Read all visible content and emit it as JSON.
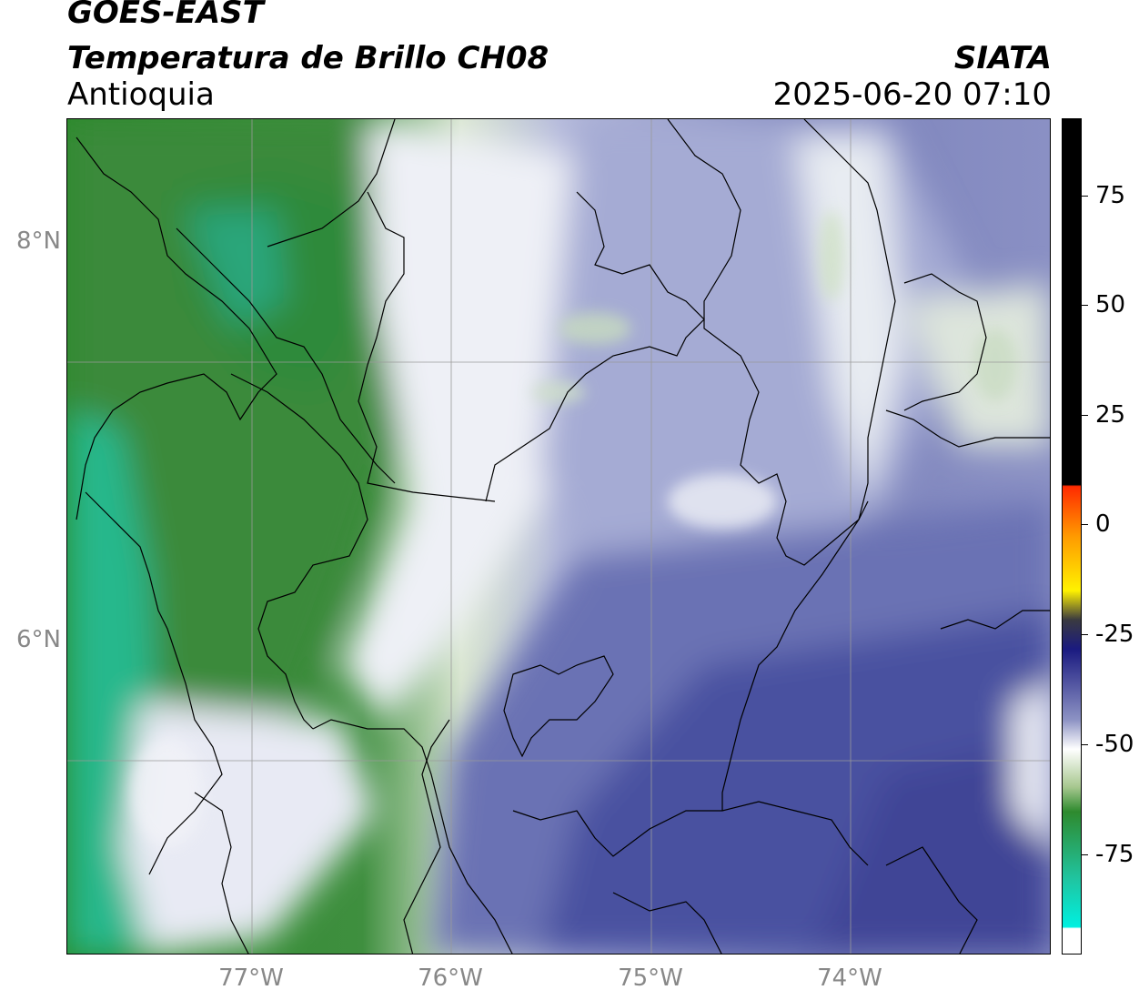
{
  "header": {
    "title_line1": "GOES-EAST",
    "title_line2": "Temperatura de Brillo CH08",
    "region": "Antioquia",
    "organization": "SIATA",
    "datetime": "2025-06-20 07:10"
  },
  "map": {
    "lat_labels": [
      "8°N",
      "6°N"
    ],
    "lon_labels": [
      "77°W",
      "76°W",
      "75°W",
      "74°W"
    ]
  },
  "colorbar": {
    "ticks": [
      "75",
      "50",
      "25",
      "0",
      "-25",
      "-50",
      "-75"
    ],
    "colors": {
      "positive": "#000000",
      "warm_red": "#ff2a00",
      "orange": "#ff9a00",
      "yellow": "#fff200",
      "navy": "#1a1a80",
      "blue_light": "#b8bedc",
      "white": "#ffffff",
      "green": "#2e8a2e",
      "teal": "#20c4a0",
      "cyan": "#00f0e0"
    }
  },
  "legend_colors": {
    "dry_high": "#3c4396",
    "mid_blue": "#8d93c4",
    "light": "#e8eaf4",
    "moist_green": "#3f8f3f",
    "very_moist_teal": "#22c094"
  }
}
